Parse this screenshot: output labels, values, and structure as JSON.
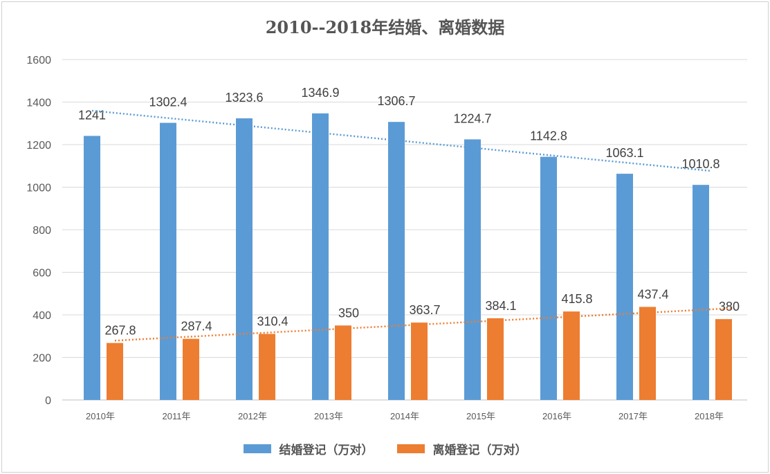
{
  "chart_data": {
    "type": "bar",
    "title": "2010--2018年结婚、离婚数据",
    "categories": [
      "2010年",
      "2011年",
      "2012年",
      "2013年",
      "2014年",
      "2015年",
      "2016年",
      "2017年",
      "2018年"
    ],
    "series": [
      {
        "name": "结婚登记（万对）",
        "color": "#5b9bd5",
        "values": [
          1241,
          1302.4,
          1323.6,
          1346.9,
          1306.7,
          1224.7,
          1142.8,
          1063.1,
          1010.8
        ]
      },
      {
        "name": "离婚登记（万对）",
        "color": "#ed7d31",
        "values": [
          267.8,
          287.4,
          310.4,
          350,
          363.7,
          384.1,
          415.8,
          437.4,
          380
        ]
      }
    ],
    "ylim": [
      0,
      1600
    ],
    "yticks": [
      0,
      200,
      400,
      600,
      800,
      1000,
      1200,
      1400,
      1600
    ],
    "grid": true,
    "trendlines": "linear, dotted, per series",
    "legend": "bottom",
    "data_labels": true,
    "xlabel": "",
    "ylabel": ""
  }
}
